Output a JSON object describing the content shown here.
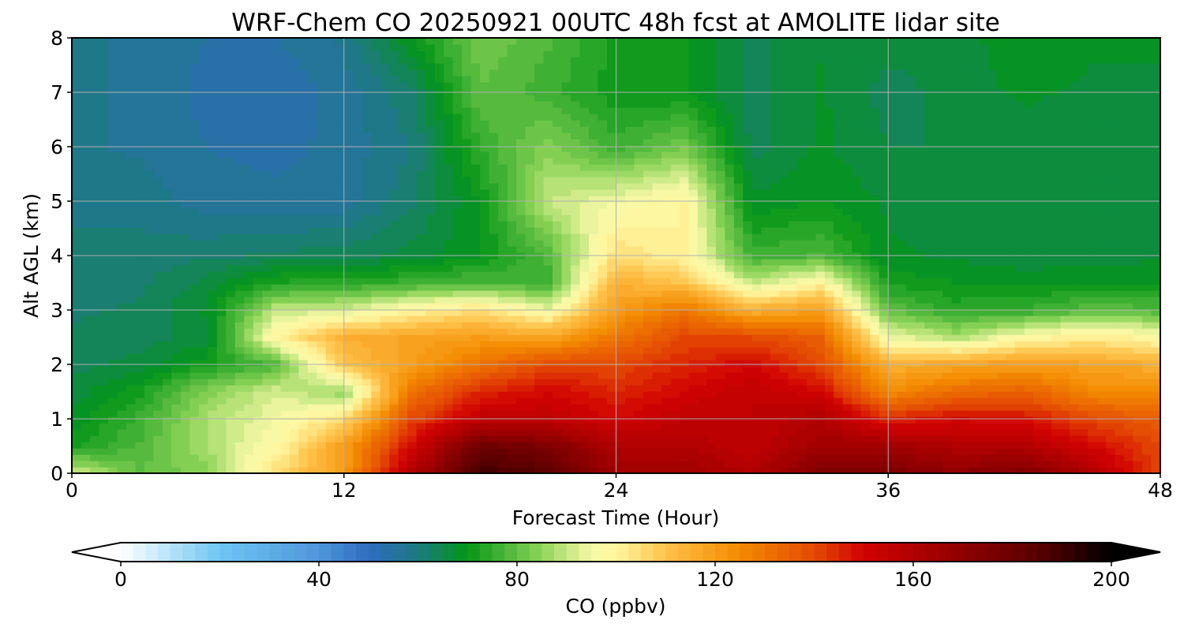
{
  "title": "WRF-Chem CO  20250921 00UTC 48h fcst at AMOLITE lidar site",
  "chart_data": {
    "type": "heatmap",
    "subtype": "filled-contour time-height cross-section",
    "title": "WRF-Chem CO  20250921 00UTC 48h fcst at AMOLITE lidar site",
    "xlabel": "Forecast Time (Hour)",
    "ylabel": "Alt AGL (km)",
    "xlim": [
      0,
      48
    ],
    "ylim": [
      0,
      8
    ],
    "xticks": [
      0,
      12,
      24,
      36,
      48
    ],
    "xtick_labels": [
      "0",
      "12",
      "24",
      "36",
      "48"
    ],
    "yticks": [
      0,
      1,
      2,
      3,
      4,
      5,
      6,
      7,
      8
    ],
    "ytick_labels": [
      "0",
      "1",
      "2",
      "3",
      "4",
      "5",
      "6",
      "7",
      "8"
    ],
    "grid": true,
    "x": [
      0,
      3,
      6,
      9,
      12,
      15,
      18,
      21,
      24,
      27,
      30,
      33,
      36,
      39,
      42,
      45,
      48
    ],
    "y": [
      0,
      0.5,
      1,
      1.5,
      2,
      2.5,
      3,
      3.5,
      4,
      5,
      6,
      7,
      8
    ],
    "z": [
      [
        92,
        80,
        84,
        105,
        120,
        160,
        190,
        185,
        165,
        165,
        160,
        175,
        175,
        170,
        175,
        160,
        140
      ],
      [
        72,
        78,
        88,
        98,
        120,
        150,
        180,
        175,
        160,
        160,
        155,
        165,
        165,
        160,
        160,
        150,
        140
      ],
      [
        68,
        76,
        88,
        95,
        105,
        140,
        155,
        155,
        150,
        155,
        155,
        160,
        145,
        150,
        148,
        140,
        135
      ],
      [
        66,
        72,
        84,
        92,
        85,
        130,
        145,
        150,
        145,
        150,
        155,
        150,
        125,
        132,
        135,
        125,
        125
      ],
      [
        64,
        66,
        72,
        78,
        110,
        120,
        130,
        140,
        140,
        145,
        150,
        140,
        115,
        118,
        120,
        118,
        115
      ],
      [
        63,
        64,
        66,
        100,
        115,
        118,
        120,
        118,
        130,
        140,
        140,
        135,
        95,
        88,
        98,
        102,
        98
      ],
      [
        62,
        63,
        68,
        90,
        92,
        100,
        105,
        95,
        120,
        130,
        115,
        120,
        80,
        74,
        75,
        80,
        78
      ],
      [
        61,
        62,
        66,
        73,
        74,
        76,
        78,
        76,
        115,
        110,
        90,
        100,
        72,
        70,
        69,
        70,
        70
      ],
      [
        60,
        61,
        62,
        63,
        64,
        66,
        70,
        78,
        105,
        100,
        76,
        78,
        68,
        67,
        66,
        66,
        67
      ],
      [
        60,
        59,
        56,
        56,
        56,
        62,
        70,
        90,
        95,
        100,
        68,
        70,
        67,
        66,
        65,
        65,
        67
      ],
      [
        58,
        57,
        55,
        54,
        56,
        60,
        75,
        84,
        76,
        82,
        64,
        68,
        65,
        65,
        66,
        66,
        67
      ],
      [
        58,
        57,
        54,
        53,
        56,
        62,
        80,
        76,
        71,
        70,
        64,
        68,
        64,
        66,
        68,
        67,
        67
      ],
      [
        58,
        57,
        55,
        55,
        58,
        70,
        82,
        78,
        72,
        70,
        64,
        67,
        66,
        66,
        70,
        68,
        68
      ]
    ],
    "colorbar": {
      "label": "CO  (ppbv)",
      "min": 0,
      "max": 200,
      "step": 2.5,
      "ticks": [
        0,
        40,
        80,
        120,
        160,
        200
      ],
      "tick_labels": [
        "0",
        "40",
        "80",
        "120",
        "160",
        "200"
      ],
      "extend": "both",
      "stops": [
        {
          "v": 0,
          "c": "#ffffff"
        },
        {
          "v": 20,
          "c": "#6ec6f2"
        },
        {
          "v": 40,
          "c": "#4f96da"
        },
        {
          "v": 50,
          "c": "#2f6cc0"
        },
        {
          "v": 60,
          "c": "#1d7a80"
        },
        {
          "v": 70,
          "c": "#049617"
        },
        {
          "v": 85,
          "c": "#8fd45a"
        },
        {
          "v": 95,
          "c": "#f6f8a6"
        },
        {
          "v": 100,
          "c": "#fff6a0"
        },
        {
          "v": 110,
          "c": "#ffc24a"
        },
        {
          "v": 125,
          "c": "#f38a00"
        },
        {
          "v": 140,
          "c": "#e44a04"
        },
        {
          "v": 150,
          "c": "#d00202"
        },
        {
          "v": 165,
          "c": "#a00000"
        },
        {
          "v": 185,
          "c": "#5a0000"
        },
        {
          "v": 200,
          "c": "#000000"
        }
      ]
    }
  }
}
